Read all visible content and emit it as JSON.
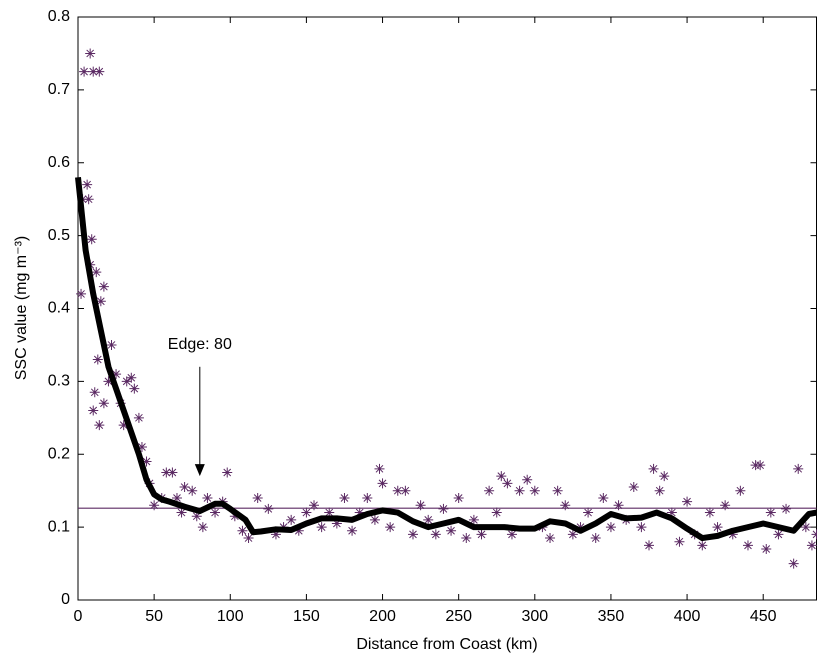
{
  "chart_data": {
    "type": "scatter",
    "xlabel": "Distance from Coast (km)",
    "ylabel": "SSC value (mg m⁻³)",
    "xlim": [
      0,
      485
    ],
    "ylim": [
      0,
      0.8
    ],
    "xticks": [
      0,
      50,
      100,
      150,
      200,
      250,
      300,
      350,
      400,
      450
    ],
    "yticks": [
      0,
      0.1,
      0.2,
      0.3,
      0.4,
      0.5,
      0.6,
      0.7,
      0.8
    ],
    "grid": false,
    "series": [
      {
        "type": "scatter",
        "color": "#5b2a63",
        "x": [
          2,
          3,
          4,
          8,
          10,
          14,
          6,
          7,
          9,
          8,
          12,
          15,
          17,
          13,
          11,
          10,
          14,
          17,
          20,
          22,
          25,
          28,
          30,
          32,
          35,
          37,
          40,
          42,
          45,
          47,
          50,
          55,
          58,
          62,
          65,
          68,
          70,
          75,
          78,
          82,
          85,
          90,
          95,
          98,
          103,
          108,
          112,
          118,
          125,
          130,
          135,
          140,
          145,
          150,
          155,
          160,
          165,
          170,
          175,
          180,
          185,
          190,
          195,
          198,
          200,
          205,
          210,
          215,
          220,
          225,
          230,
          235,
          240,
          245,
          250,
          255,
          260,
          265,
          270,
          275,
          278,
          282,
          285,
          290,
          295,
          300,
          305,
          310,
          315,
          320,
          325,
          330,
          335,
          340,
          345,
          350,
          355,
          360,
          365,
          370,
          375,
          378,
          382,
          385,
          390,
          395,
          400,
          405,
          410,
          415,
          420,
          425,
          430,
          435,
          440,
          445,
          448,
          452,
          455,
          460,
          465,
          470,
          473,
          478,
          482,
          485
        ],
        "values": [
          0.42,
          0.55,
          0.725,
          0.75,
          0.725,
          0.725,
          0.57,
          0.55,
          0.495,
          0.46,
          0.45,
          0.41,
          0.43,
          0.33,
          0.285,
          0.26,
          0.24,
          0.27,
          0.3,
          0.35,
          0.31,
          0.27,
          0.24,
          0.3,
          0.305,
          0.29,
          0.25,
          0.21,
          0.19,
          0.16,
          0.13,
          0.14,
          0.175,
          0.175,
          0.14,
          0.12,
          0.155,
          0.15,
          0.115,
          0.1,
          0.14,
          0.12,
          0.135,
          0.175,
          0.115,
          0.095,
          0.085,
          0.14,
          0.125,
          0.09,
          0.1,
          0.11,
          0.095,
          0.12,
          0.13,
          0.1,
          0.12,
          0.105,
          0.14,
          0.095,
          0.12,
          0.14,
          0.11,
          0.18,
          0.16,
          0.1,
          0.15,
          0.15,
          0.09,
          0.13,
          0.11,
          0.09,
          0.125,
          0.095,
          0.14,
          0.085,
          0.11,
          0.09,
          0.15,
          0.12,
          0.17,
          0.16,
          0.09,
          0.15,
          0.165,
          0.15,
          0.1,
          0.085,
          0.15,
          0.13,
          0.09,
          0.1,
          0.12,
          0.085,
          0.14,
          0.1,
          0.13,
          0.11,
          0.155,
          0.1,
          0.075,
          0.18,
          0.15,
          0.17,
          0.12,
          0.08,
          0.135,
          0.09,
          0.075,
          0.12,
          0.1,
          0.13,
          0.09,
          0.15,
          0.075,
          0.185,
          0.185,
          0.07,
          0.12,
          0.09,
          0.125,
          0.05,
          0.18,
          0.1,
          0.075,
          0.09
        ]
      },
      {
        "type": "line",
        "color": "#000000",
        "x": [
          0,
          5,
          10,
          15,
          20,
          25,
          30,
          35,
          40,
          45,
          50,
          55,
          60,
          70,
          80,
          90,
          95,
          100,
          110,
          115,
          120,
          130,
          140,
          150,
          160,
          170,
          180,
          190,
          200,
          210,
          220,
          230,
          240,
          250,
          260,
          270,
          280,
          290,
          300,
          310,
          320,
          330,
          340,
          350,
          360,
          370,
          380,
          390,
          400,
          410,
          420,
          430,
          440,
          450,
          460,
          470,
          480,
          485
        ],
        "values": [
          0.58,
          0.48,
          0.42,
          0.37,
          0.32,
          0.29,
          0.26,
          0.23,
          0.2,
          0.165,
          0.145,
          0.138,
          0.135,
          0.128,
          0.122,
          0.132,
          0.132,
          0.125,
          0.11,
          0.093,
          0.094,
          0.097,
          0.096,
          0.105,
          0.112,
          0.112,
          0.11,
          0.118,
          0.123,
          0.12,
          0.108,
          0.1,
          0.105,
          0.11,
          0.1,
          0.1,
          0.1,
          0.098,
          0.098,
          0.108,
          0.105,
          0.095,
          0.105,
          0.118,
          0.112,
          0.113,
          0.12,
          0.112,
          0.098,
          0.085,
          0.088,
          0.095,
          0.1,
          0.105,
          0.1,
          0.095,
          0.118,
          0.12
        ]
      }
    ],
    "hline": {
      "value": 0.126,
      "color": "#5b2a63"
    },
    "annotation": {
      "text": "Edge: 80",
      "x": 80,
      "y_top": 0.32,
      "y_bottom": 0.17
    }
  }
}
